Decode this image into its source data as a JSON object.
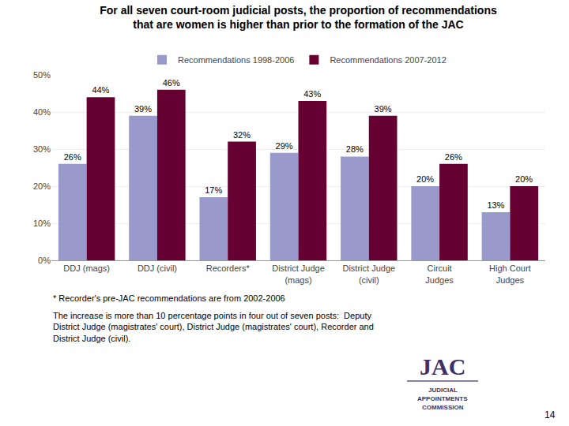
{
  "chart_data": {
    "type": "bar",
    "title": "For all seven court-room judicial posts, the proportion of recommendations\nthat are women is higher than prior to the formation of the JAC",
    "categories": [
      "DDJ (mags)",
      "DDJ (civil)",
      "Recorders*",
      "District Judge\n(mags)",
      "District Judge\n(civil)",
      "Circuit\nJudges",
      "High Court\nJudges"
    ],
    "series": [
      {
        "name": "Recommendations 1998-2006",
        "color": "#9999CC",
        "values": [
          26,
          39,
          17,
          29,
          28,
          20,
          13
        ],
        "value_labels": [
          "26%",
          "39%",
          "17%",
          "29%",
          "28%",
          "20%",
          "13%"
        ]
      },
      {
        "name": "Recommendations 2007-2012",
        "color": "#660033",
        "values": [
          44,
          46,
          32,
          43,
          39,
          26,
          20
        ],
        "value_labels": [
          "44%",
          "46%",
          "32%",
          "43%",
          "39%",
          "26%",
          "20%"
        ]
      }
    ],
    "ylim": [
      0,
      50
    ],
    "yticks": [
      {
        "value": 0,
        "label": "0%"
      },
      {
        "value": 10,
        "label": "10%"
      },
      {
        "value": 20,
        "label": "20%"
      },
      {
        "value": 30,
        "label": "30%"
      },
      {
        "value": 40,
        "label": "40%"
      },
      {
        "value": 50,
        "label": "50%"
      }
    ],
    "grid": true,
    "legend": "top",
    "data_labels": true,
    "annotations": [
      "* Recorder's pre-JAC recommendations are from 2002-2006",
      "The increase is more than 10 percentage points in four out of seven posts:  Deputy\nDistrict Judge (magistrates' court), District Judge (magistrates' court), Recorder and\nDistrict Judge (civil).",
      "14",
      "JAC",
      "JUDICIAL",
      "APPOINTMENTS",
      "COMMISSION"
    ]
  }
}
